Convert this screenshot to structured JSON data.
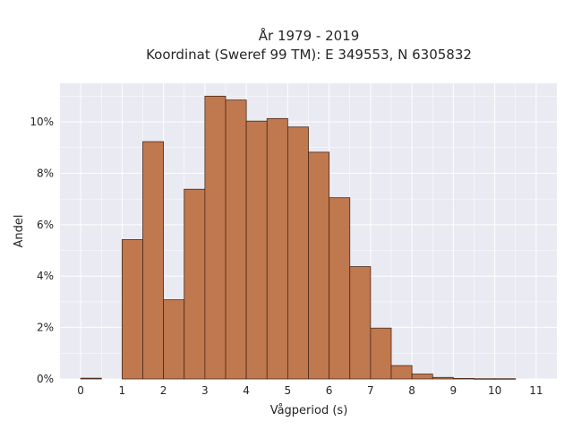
{
  "chart_data": {
    "type": "bar",
    "title_line1": "År 1979 - 2019",
    "title_line2": "Koordinat (Sweref 99 TM): E 349553, N 6305832",
    "xlabel": "Vågperiod (s)",
    "ylabel": "Andel",
    "bin_width": 0.5,
    "bin_starts": [
      0,
      0.5,
      1,
      1.5,
      2,
      2.5,
      3,
      3.5,
      4,
      4.5,
      5,
      5.5,
      6,
      6.5,
      7,
      7.5,
      8,
      8.5,
      9,
      9.5,
      10,
      10.5
    ],
    "values": [
      0.0003,
      0,
      0.0542,
      0.0923,
      0.0308,
      0.0738,
      0.11,
      0.1085,
      0.1003,
      0.1013,
      0.098,
      0.0882,
      0.0705,
      0.0437,
      0.0198,
      0.0052,
      0.0019,
      0.0006,
      0.0002,
      0.0001,
      0.0001,
      0
    ],
    "xlim": [
      -0.5,
      11.5
    ],
    "ylim": [
      0,
      0.115
    ],
    "x_ticks": [
      0,
      1,
      2,
      3,
      4,
      5,
      6,
      7,
      8,
      9,
      10,
      11
    ],
    "x_tick_labels": [
      "0",
      "1",
      "2",
      "3",
      "4",
      "5",
      "6",
      "7",
      "8",
      "9",
      "10",
      "11"
    ],
    "y_ticks": [
      0,
      0.02,
      0.04,
      0.06,
      0.08,
      0.1
    ],
    "y_tick_labels": [
      "0%",
      "2%",
      "4%",
      "6%",
      "8%",
      "10%"
    ],
    "grid": true,
    "legend": "none",
    "colors": {
      "bar": "#c0784f",
      "bar_edge": "#4a2a18",
      "plot_background": "#eaeaf2",
      "grid": "#ffffff",
      "text": "#262626"
    }
  }
}
